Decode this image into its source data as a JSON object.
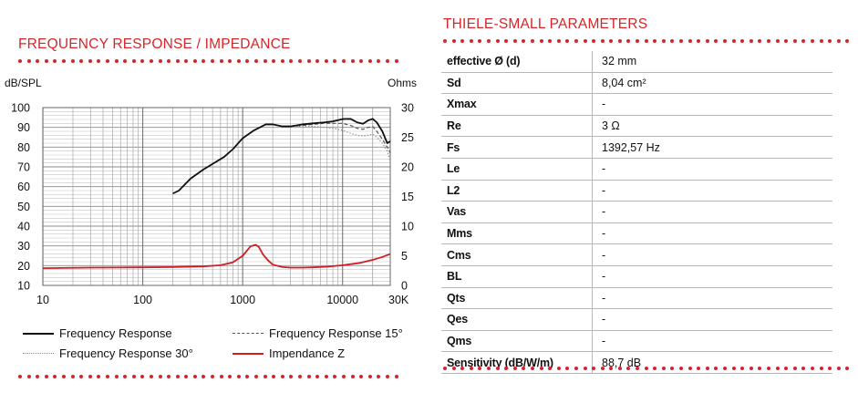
{
  "left_section": {
    "title": "FREQUENCY RESPONSE / IMPEDANCE",
    "left_axis_unit": "dB/SPL",
    "right_axis_unit": "Ohms"
  },
  "right_section": {
    "title": "THIELE-SMALL PARAMETERS",
    "parameters": [
      {
        "name": "effective Ø (d)",
        "value": "32 mm"
      },
      {
        "name": "Sd",
        "value": "8,04 cm²"
      },
      {
        "name": "Xmax",
        "value": "-"
      },
      {
        "name": "Re",
        "value": "3 Ω"
      },
      {
        "name": "Fs",
        "value": "1392,57 Hz"
      },
      {
        "name": "Le",
        "value": "-"
      },
      {
        "name": "L2",
        "value": "-"
      },
      {
        "name": "Vas",
        "value": "-"
      },
      {
        "name": "Mms",
        "value": "-"
      },
      {
        "name": "Cms",
        "value": "-"
      },
      {
        "name": "BL",
        "value": "-"
      },
      {
        "name": "Qts",
        "value": "-"
      },
      {
        "name": "Qes",
        "value": "-"
      },
      {
        "name": "Qms",
        "value": "-"
      },
      {
        "name": "Sensitivity (dB/W/m)",
        "value": "88,7 dB"
      }
    ]
  },
  "colors": {
    "accent": "#d6252a",
    "grid": "#9a9a9a",
    "frequency_response": "#111111",
    "frequency_response_15": "#555555",
    "frequency_response_30": "#8a8a8a",
    "impedance": "#cc1f26"
  },
  "chart_data": {
    "type": "line",
    "x_scale": "log",
    "xlim": [
      10,
      30000
    ],
    "x_ticks": [
      10,
      100,
      1000,
      10000,
      30000
    ],
    "x_tick_labels": [
      "10",
      "100",
      "1000",
      "10000",
      "30K"
    ],
    "ylim": [
      10,
      100
    ],
    "y_ticks": [
      10,
      20,
      30,
      40,
      50,
      60,
      70,
      80,
      90,
      100
    ],
    "y_tick_labels": [
      "10",
      "20",
      "30",
      "40",
      "50",
      "60",
      "70",
      "80",
      "90",
      "100"
    ],
    "ylabel": "dB/SPL",
    "y2lim": [
      0,
      30
    ],
    "y2_ticks": [
      0,
      5,
      10,
      15,
      20,
      25,
      30
    ],
    "y2_tick_labels": [
      "0",
      "5",
      "10",
      "15",
      "20",
      "25",
      "30"
    ],
    "y2label": "Ohms",
    "grid": true,
    "legend_position": "bottom",
    "series": [
      {
        "name": "Frequency Response",
        "axis": "left",
        "style": "solid",
        "x": [
          200,
          230,
          300,
          400,
          500,
          650,
          800,
          1000,
          1300,
          1700,
          2000,
          2500,
          3000,
          4000,
          5000,
          6500,
          8000,
          10000,
          12000,
          14000,
          16000,
          18000,
          20000,
          22000,
          25000,
          28000,
          30000
        ],
        "y": [
          56.5,
          58,
          64,
          68.5,
          71.5,
          75,
          79,
          84.5,
          88.5,
          91.5,
          91.5,
          90.5,
          90.5,
          91.5,
          92,
          92.5,
          93,
          94.2,
          94.3,
          92.5,
          91.8,
          93.5,
          94.3,
          92.5,
          88,
          82,
          83
        ]
      },
      {
        "name": "Frequency Response 15°",
        "axis": "left",
        "style": "dashed",
        "x": [
          200,
          230,
          300,
          400,
          500,
          650,
          800,
          1000,
          1300,
          1700,
          2000,
          2500,
          3000,
          4000,
          5000,
          6500,
          8000,
          10000,
          12000,
          14000,
          16000,
          18000,
          20000,
          22000,
          25000,
          28000,
          30000
        ],
        "y": [
          56.5,
          58,
          64,
          68.5,
          71.5,
          75,
          79,
          84.5,
          88.5,
          91.5,
          91.5,
          90.5,
          90.5,
          91,
          91.5,
          92,
          92,
          92,
          91,
          89.5,
          89,
          90,
          90.5,
          88,
          84,
          80,
          77
        ]
      },
      {
        "name": "Frequency Response 30°",
        "axis": "left",
        "style": "dotted",
        "x": [
          200,
          230,
          300,
          400,
          500,
          650,
          800,
          1000,
          1300,
          1700,
          2000,
          2500,
          3000,
          4000,
          5000,
          6500,
          8000,
          10000,
          12000,
          14000,
          16000,
          18000,
          20000,
          22000,
          25000,
          28000,
          30000
        ],
        "y": [
          56.5,
          58,
          64,
          68.5,
          71.5,
          75,
          79,
          84.5,
          88.5,
          91.5,
          91.5,
          90.5,
          90.5,
          90.5,
          90.5,
          90,
          89.5,
          88.5,
          87,
          86,
          85.5,
          86,
          86.5,
          85,
          82,
          78,
          73
        ]
      },
      {
        "name": "Impendance Z",
        "axis": "right",
        "style": "solid",
        "x": [
          10,
          30,
          100,
          200,
          400,
          600,
          800,
          1000,
          1200,
          1350,
          1450,
          1600,
          1800,
          2000,
          2500,
          3000,
          4000,
          5000,
          7000,
          10000,
          15000,
          20000,
          25000,
          30000
        ],
        "y": [
          2.9,
          3.0,
          3.05,
          3.1,
          3.2,
          3.4,
          3.9,
          5.0,
          6.6,
          6.85,
          6.5,
          5.2,
          4.2,
          3.5,
          3.1,
          3.0,
          3.0,
          3.05,
          3.15,
          3.4,
          3.8,
          4.3,
          4.8,
          5.3
        ]
      }
    ]
  }
}
